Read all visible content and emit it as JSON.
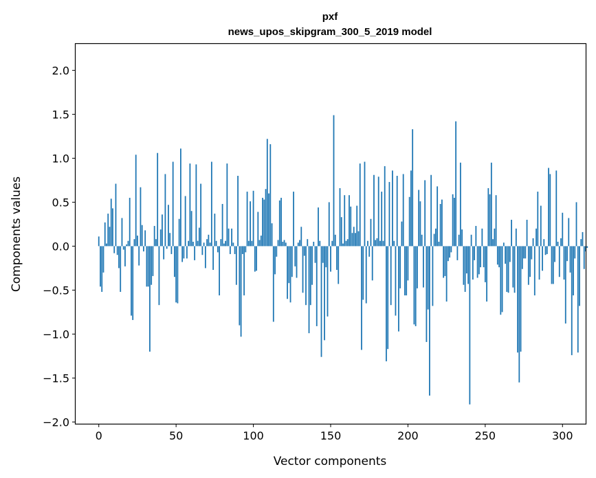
{
  "chart_data": {
    "type": "bar",
    "title": "pxf",
    "subtitle": "news_upos_skipgram_300_5_2019 model",
    "xlabel": "Vector components",
    "ylabel": "Components values",
    "xlim": [
      -15,
      315
    ],
    "ylim": [
      -2.02,
      2.3
    ],
    "xticks": [
      0,
      50,
      100,
      150,
      200,
      250,
      300
    ],
    "xtick_labels": [
      "0",
      "50",
      "100",
      "150",
      "200",
      "250",
      "300"
    ],
    "yticks": [
      -2.0,
      -1.5,
      -1.0,
      -0.5,
      0.0,
      0.5,
      1.0,
      1.5,
      2.0
    ],
    "ytick_labels": [
      "−2.0",
      "−1.5",
      "−1.0",
      "−0.5",
      "0.0",
      "0.5",
      "1.0",
      "1.5",
      "2.0"
    ],
    "grid": false,
    "bar_color": "#1f77b4",
    "values": [
      0.11,
      -0.46,
      -0.52,
      -0.3,
      0.27,
      0.03,
      0.37,
      0.22,
      0.54,
      0.43,
      -0.08,
      0.71,
      -0.1,
      -0.25,
      -0.52,
      0.32,
      -0.04,
      -0.23,
      0.02,
      0.06,
      0.55,
      -0.79,
      -0.84,
      0.08,
      1.04,
      0.12,
      -0.22,
      0.67,
      0.24,
      -0.06,
      0.18,
      -0.46,
      -0.46,
      -1.2,
      -0.44,
      -0.34,
      0.23,
      0.08,
      1.06,
      -0.67,
      0.19,
      0.36,
      -0.15,
      0.82,
      -0.03,
      0.47,
      0.15,
      -0.09,
      0.96,
      -0.35,
      -0.64,
      -0.65,
      0.31,
      1.11,
      -0.18,
      -0.14,
      0.57,
      -0.14,
      0.06,
      0.94,
      0.4,
      0.05,
      -0.16,
      0.93,
      0.06,
      0.21,
      0.71,
      -0.1,
      0.04,
      -0.25,
      0.08,
      0.13,
      0.04,
      0.96,
      -0.27,
      0.37,
      0.06,
      -0.07,
      -0.56,
      0.08,
      0.48,
      0.03,
      0.06,
      0.94,
      0.2,
      -0.09,
      0.2,
      0.04,
      -0.09,
      -0.44,
      0.8,
      -0.9,
      -1.03,
      -0.09,
      -0.56,
      -0.07,
      0.62,
      0.06,
      0.51,
      0.06,
      0.63,
      -0.29,
      -0.28,
      0.39,
      0.07,
      0.12,
      0.55,
      0.53,
      0.65,
      1.22,
      0.6,
      1.16,
      0.26,
      -0.86,
      -0.32,
      -0.12,
      0.07,
      0.52,
      0.55,
      0.05,
      0.07,
      0.04,
      -0.6,
      -0.42,
      -0.64,
      -0.35,
      0.62,
      -0.23,
      -0.36,
      0.04,
      0.07,
      0.22,
      -0.53,
      -0.11,
      -0.67,
      0.08,
      -0.99,
      -0.67,
      -0.44,
      0.05,
      -0.19,
      -0.91,
      0.44,
      0.06,
      -1.26,
      -0.19,
      -1.07,
      -0.24,
      -0.8,
      0.5,
      -0.29,
      0.06,
      1.49,
      0.13,
      -0.27,
      -0.43,
      0.66,
      0.33,
      0.03,
      0.58,
      0.06,
      0.08,
      0.58,
      0.45,
      0.15,
      0.22,
      0.15,
      0.46,
      0.17,
      0.94,
      -1.18,
      -0.61,
      0.96,
      -0.65,
      0.06,
      -0.12,
      0.31,
      -0.39,
      0.81,
      0.07,
      0.09,
      0.79,
      0.06,
      0.62,
      0.06,
      0.91,
      -1.31,
      -1.17,
      0.73,
      -0.67,
      0.86,
      0.06,
      -0.79,
      0.8,
      -0.97,
      -0.48,
      0.28,
      0.82,
      -0.56,
      -0.56,
      -0.39,
      0.56,
      0.86,
      1.33,
      -0.89,
      -0.91,
      -0.48,
      0.64,
      0.51,
      0.13,
      -0.47,
      0.75,
      -1.09,
      -0.72,
      -1.7,
      0.81,
      -0.68,
      0.14,
      0.2,
      0.68,
      0.05,
      0.48,
      0.53,
      -0.36,
      -0.34,
      -0.63,
      -0.17,
      -0.13,
      -0.07,
      0.59,
      0.55,
      1.42,
      -0.16,
      0.13,
      0.95,
      0.19,
      -0.44,
      -0.52,
      -0.31,
      -0.43,
      -1.8,
      0.13,
      -0.38,
      -0.16,
      0.23,
      -0.36,
      -0.32,
      -0.24,
      0.2,
      -0.24,
      -0.41,
      -0.63,
      0.66,
      0.59,
      0.95,
      0.08,
      0.2,
      0.58,
      -0.21,
      -0.24,
      -0.78,
      -0.75,
      0.04,
      -0.2,
      -0.52,
      -0.53,
      -0.18,
      0.3,
      -0.47,
      -0.53,
      0.2,
      -1.21,
      -1.55,
      -1.2,
      -0.26,
      -0.14,
      -0.14,
      0.3,
      -0.44,
      -0.35,
      -0.15,
      0.09,
      -0.56,
      0.2,
      0.62,
      -0.38,
      0.46,
      -0.28,
      0.08,
      -0.1,
      -0.09,
      0.89,
      0.82,
      -0.43,
      -0.43,
      -0.18,
      0.86,
      0.05,
      -0.35,
      0.09,
      0.38,
      -0.38,
      -0.88,
      -0.17,
      0.32,
      -0.3,
      -1.24,
      -0.56,
      -0.14,
      0.5,
      -1.21,
      -0.68,
      0.08,
      0.16,
      -0.26,
      -0.06,
      -0.02
    ]
  }
}
